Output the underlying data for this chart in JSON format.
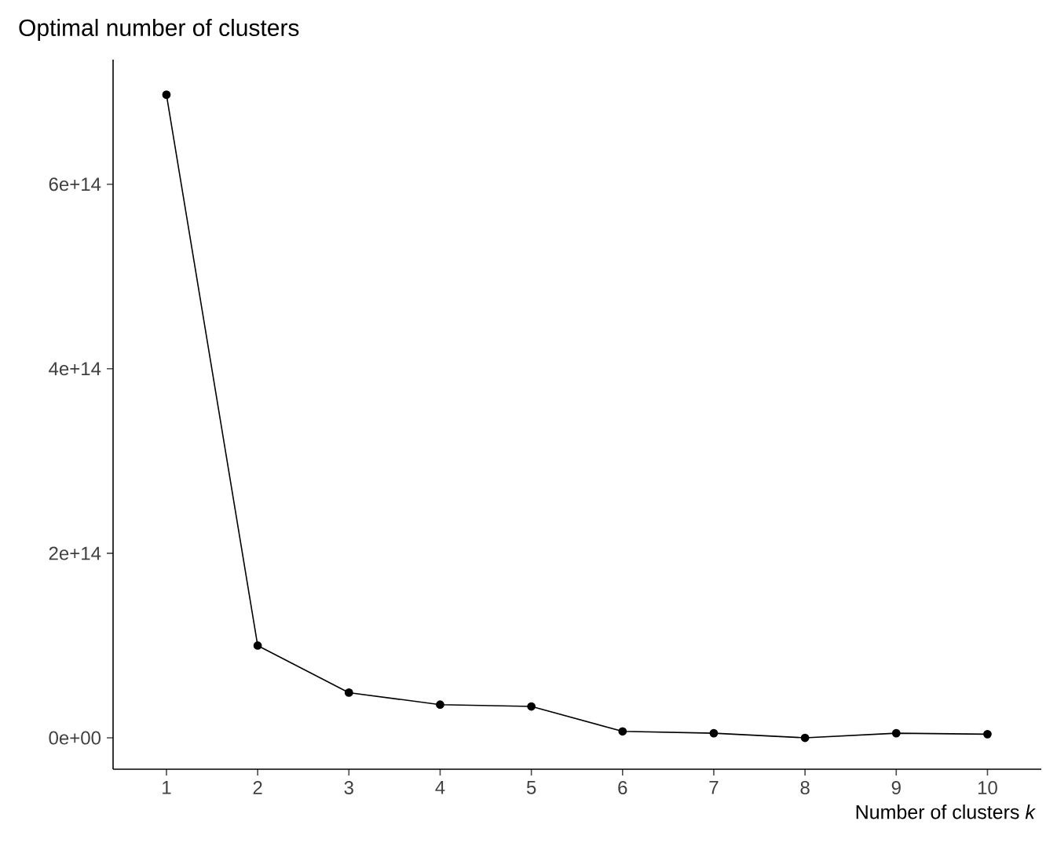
{
  "chart_data": {
    "type": "line",
    "title": "Optimal number of clusters",
    "xlabel": "Number of clusters *k*",
    "categories": [
      "1",
      "2",
      "3",
      "4",
      "5",
      "6",
      "7",
      "8",
      "9",
      "10"
    ],
    "series": [
      {
        "color": "#000000",
        "values": [
          697000000000000.0,
          100000000000000.0,
          49000000000000.0,
          36000000000000.0,
          34000000000000.0,
          7000000000000.0,
          5000000000000.0,
          0,
          5000000000000.0,
          4000000000000.0
        ]
      }
    ],
    "ylim": [
      -34000000000000.0,
      735000000000000.0
    ],
    "yticks": [
      {
        "value": 0,
        "label": "0e+00"
      },
      {
        "value": 200000000000000.0,
        "label": "2e+14"
      },
      {
        "value": 400000000000000.0,
        "label": "4e+14"
      },
      {
        "value": 600000000000000.0,
        "label": "6e+14"
      }
    ],
    "grid": false,
    "marker": "circle",
    "line_style": "solid"
  }
}
